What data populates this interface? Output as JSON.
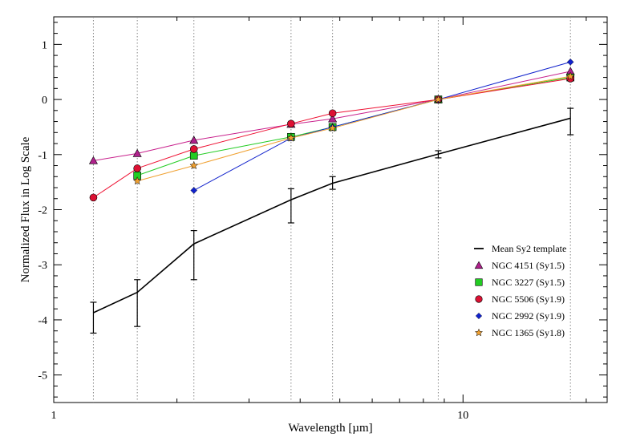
{
  "chart_data": {
    "type": "line",
    "xlabel": "Wavelength [µm]",
    "ylabel": "Normalized Flux in Log Scale",
    "x_scale": "log",
    "xlim": [
      1,
      22.5
    ],
    "ylim": [
      -5.5,
      1.5
    ],
    "x_ticks": [
      {
        "value": 1,
        "label": "1"
      },
      {
        "value": 10,
        "label": "10"
      }
    ],
    "y_ticks": [
      {
        "value": 1,
        "label": "1"
      },
      {
        "value": 0,
        "label": "0"
      },
      {
        "value": -1,
        "label": "-1"
      },
      {
        "value": -2,
        "label": "-2"
      },
      {
        "value": -3,
        "label": "-3"
      },
      {
        "value": -4,
        "label": "-4"
      },
      {
        "value": -5,
        "label": "-5"
      }
    ],
    "vertical_dotted_lines_x": [
      1.25,
      1.6,
      2.2,
      3.8,
      4.8,
      8.7,
      18.3
    ],
    "legend_position": "right",
    "series": [
      {
        "name": "Mean Sy2 template",
        "color": "#000000",
        "marker": "none",
        "points": [
          {
            "x": 1.25,
            "y": -3.87,
            "err_low": -4.24,
            "err_high": -3.68
          },
          {
            "x": 1.6,
            "y": -3.5,
            "err_low": -4.12,
            "err_high": -3.27
          },
          {
            "x": 2.2,
            "y": -2.62,
            "err_low": -3.27,
            "err_high": -2.38
          },
          {
            "x": 3.8,
            "y": -1.82,
            "err_low": -2.24,
            "err_high": -1.62
          },
          {
            "x": 4.8,
            "y": -1.52,
            "err_low": -1.63,
            "err_high": -1.4
          },
          {
            "x": 8.7,
            "y": -0.99,
            "err_low": -1.06,
            "err_high": -0.93
          },
          {
            "x": 18.3,
            "y": -0.34,
            "err_low": -0.64,
            "err_high": -0.16
          }
        ]
      },
      {
        "name": "NGC 4151 (Sy1.5)",
        "color": "#c8208c",
        "marker": "triangle",
        "marker_color": "#b0208c",
        "points": [
          {
            "x": 1.25,
            "y": -1.11
          },
          {
            "x": 1.6,
            "y": -0.98
          },
          {
            "x": 2.2,
            "y": -0.74
          },
          {
            "x": 3.8,
            "y": -0.45
          },
          {
            "x": 4.8,
            "y": -0.35
          },
          {
            "x": 8.7,
            "y": 0.0
          },
          {
            "x": 18.3,
            "y": 0.51
          }
        ]
      },
      {
        "name": "NGC 3227 (Sy1.5)",
        "color": "#22cc22",
        "marker": "square",
        "marker_color": "#22cc22",
        "points": [
          {
            "x": 1.6,
            "y": -1.38
          },
          {
            "x": 2.2,
            "y": -1.02
          },
          {
            "x": 3.8,
            "y": -0.68
          },
          {
            "x": 4.8,
            "y": -0.5
          },
          {
            "x": 8.7,
            "y": 0.0
          },
          {
            "x": 18.3,
            "y": 0.4
          }
        ]
      },
      {
        "name": "NGC 5506 (Sy1.9)",
        "color": "#ee1133",
        "marker": "circle",
        "marker_color": "#dd1133",
        "points": [
          {
            "x": 1.25,
            "y": -1.78
          },
          {
            "x": 1.6,
            "y": -1.25
          },
          {
            "x": 2.2,
            "y": -0.9
          },
          {
            "x": 3.8,
            "y": -0.44
          },
          {
            "x": 4.8,
            "y": -0.25
          },
          {
            "x": 8.7,
            "y": 0.0
          },
          {
            "x": 18.3,
            "y": 0.38
          }
        ]
      },
      {
        "name": "NGC 2992 (Sy1.9)",
        "color": "#1122cc",
        "marker": "diamond",
        "marker_color": "#1122cc",
        "points": [
          {
            "x": 2.2,
            "y": -1.65
          },
          {
            "x": 3.8,
            "y": -0.7
          },
          {
            "x": 4.8,
            "y": -0.5
          },
          {
            "x": 8.7,
            "y": 0.0
          },
          {
            "x": 18.3,
            "y": 0.68
          }
        ]
      },
      {
        "name": "NGC 1365 (Sy1.8)",
        "color": "#f0a030",
        "marker": "star",
        "marker_color": "#f0a030",
        "points": [
          {
            "x": 1.6,
            "y": -1.48
          },
          {
            "x": 2.2,
            "y": -1.2
          },
          {
            "x": 3.8,
            "y": -0.7
          },
          {
            "x": 4.8,
            "y": -0.52
          },
          {
            "x": 8.7,
            "y": 0.0
          },
          {
            "x": 18.3,
            "y": 0.42
          }
        ]
      }
    ]
  }
}
